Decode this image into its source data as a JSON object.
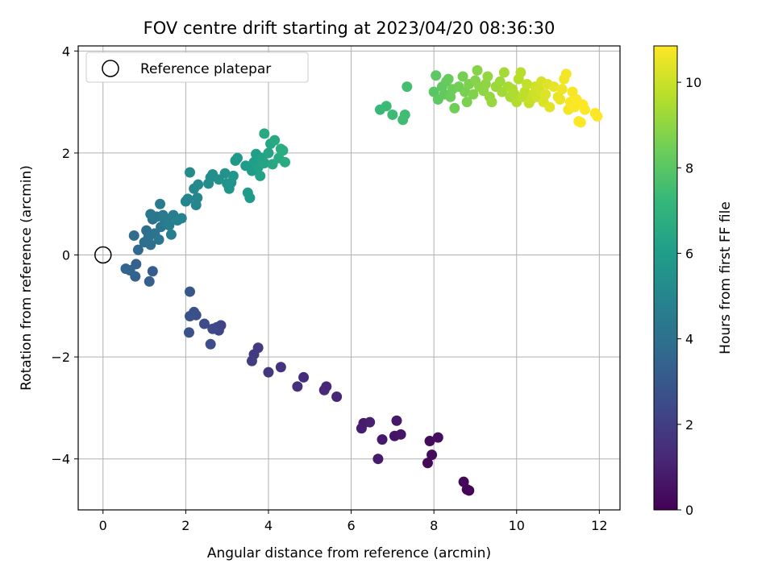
{
  "chart_data": {
    "type": "scatter",
    "title": "FOV centre drift starting at 2023/04/20 08:36:30",
    "xlabel": "Angular distance from reference (arcmin)",
    "ylabel": "Rotation from reference (arcmin)",
    "xlim": [
      -0.6,
      12.5
    ],
    "ylim": [
      -5.0,
      4.1
    ],
    "xticks": [
      0,
      2,
      4,
      6,
      8,
      10,
      12
    ],
    "yticks": [
      -4,
      -2,
      0,
      2,
      4
    ],
    "grid": true,
    "legend": {
      "entries": [
        "Reference platepar"
      ],
      "placement": "upper-left"
    },
    "colorbar": {
      "label": "Hours from first FF file",
      "range": [
        0,
        10.85
      ],
      "ticks": [
        0,
        2,
        4,
        6,
        8,
        10
      ],
      "colormap": "viridis"
    },
    "reference_point": {
      "x": 0,
      "y": 0
    },
    "colormap_stops": [
      "#440154",
      "#482878",
      "#3e4989",
      "#31688e",
      "#26828e",
      "#1f9e89",
      "#35b779",
      "#6ece58",
      "#b5de2b",
      "#fde725"
    ],
    "points": [
      [
        8.8,
        -4.6,
        0.05
      ],
      [
        8.85,
        -4.62,
        0.1
      ],
      [
        8.72,
        -4.45,
        0.15
      ],
      [
        7.85,
        -4.08,
        0.25
      ],
      [
        7.95,
        -3.92,
        0.3
      ],
      [
        7.9,
        -3.65,
        0.35
      ],
      [
        8.1,
        -3.58,
        0.4
      ],
      [
        7.05,
        -3.55,
        0.6
      ],
      [
        7.2,
        -3.52,
        0.65
      ],
      [
        7.1,
        -3.25,
        0.7
      ],
      [
        6.75,
        -3.62,
        0.75
      ],
      [
        6.65,
        -4.0,
        0.8
      ],
      [
        6.3,
        -3.3,
        0.85
      ],
      [
        6.25,
        -3.4,
        0.9
      ],
      [
        6.45,
        -3.28,
        0.95
      ],
      [
        5.65,
        -2.78,
        1.1
      ],
      [
        5.4,
        -2.58,
        1.2
      ],
      [
        5.35,
        -2.65,
        1.25
      ],
      [
        4.85,
        -2.4,
        1.4
      ],
      [
        4.7,
        -2.58,
        1.45
      ],
      [
        4.3,
        -2.2,
        1.6
      ],
      [
        4.0,
        -2.3,
        1.7
      ],
      [
        3.75,
        -1.82,
        1.85
      ],
      [
        3.65,
        -1.95,
        1.9
      ],
      [
        3.6,
        -2.08,
        1.95
      ],
      [
        2.85,
        -1.38,
        2.2
      ],
      [
        2.8,
        -1.48,
        2.3
      ],
      [
        2.75,
        -1.42,
        2.35
      ],
      [
        2.65,
        -1.45,
        2.4
      ],
      [
        2.45,
        -1.35,
        2.5
      ],
      [
        2.6,
        -1.75,
        2.55
      ],
      [
        2.2,
        -1.12,
        2.65
      ],
      [
        2.25,
        -1.18,
        2.7
      ],
      [
        2.1,
        -1.2,
        2.75
      ],
      [
        2.08,
        -1.52,
        2.8
      ],
      [
        2.1,
        -0.72,
        2.9
      ],
      [
        1.2,
        -0.32,
        3.2
      ],
      [
        1.12,
        -0.52,
        3.25
      ],
      [
        0.8,
        -0.18,
        3.35
      ],
      [
        0.78,
        -0.42,
        3.4
      ],
      [
        0.65,
        -0.3,
        3.5
      ],
      [
        0.55,
        -0.27,
        3.55
      ],
      [
        0.85,
        0.1,
        3.7
      ],
      [
        0.75,
        0.38,
        3.8
      ],
      [
        1.0,
        0.25,
        3.9
      ],
      [
        1.05,
        0.48,
        3.95
      ],
      [
        1.15,
        0.2,
        4.0
      ],
      [
        1.1,
        0.35,
        4.05
      ],
      [
        1.2,
        0.7,
        4.1
      ],
      [
        1.25,
        0.42,
        4.15
      ],
      [
        1.35,
        0.3,
        4.2
      ],
      [
        1.4,
        0.55,
        4.25
      ],
      [
        1.15,
        0.8,
        4.3
      ],
      [
        1.3,
        0.75,
        4.35
      ],
      [
        1.45,
        0.78,
        4.4
      ],
      [
        1.5,
        0.65,
        4.45
      ],
      [
        1.38,
        1.0,
        4.5
      ],
      [
        1.55,
        0.7,
        4.55
      ],
      [
        1.6,
        0.58,
        4.6
      ],
      [
        1.65,
        0.4,
        4.65
      ],
      [
        1.7,
        0.78,
        4.7
      ],
      [
        1.8,
        0.68,
        4.75
      ],
      [
        1.9,
        0.72,
        4.8
      ],
      [
        2.0,
        1.05,
        4.9
      ],
      [
        2.05,
        1.1,
        4.95
      ],
      [
        2.25,
        0.98,
        5.0
      ],
      [
        2.28,
        1.12,
        5.05
      ],
      [
        2.2,
        1.3,
        5.1
      ],
      [
        2.3,
        1.38,
        5.15
      ],
      [
        2.1,
        1.62,
        5.2
      ],
      [
        2.55,
        1.4,
        5.3
      ],
      [
        2.6,
        1.52,
        5.35
      ],
      [
        2.65,
        1.58,
        5.4
      ],
      [
        2.8,
        1.48,
        5.45
      ],
      [
        2.95,
        1.6,
        5.5
      ],
      [
        3.0,
        1.4,
        5.55
      ],
      [
        3.05,
        1.3,
        5.6
      ],
      [
        3.1,
        1.42,
        5.65
      ],
      [
        3.15,
        1.55,
        5.7
      ],
      [
        3.2,
        1.85,
        5.75
      ],
      [
        3.25,
        1.9,
        5.8
      ],
      [
        3.5,
        1.22,
        5.85
      ],
      [
        3.55,
        1.12,
        5.9
      ],
      [
        3.45,
        1.75,
        5.95
      ],
      [
        3.6,
        1.65,
        6.0
      ],
      [
        3.65,
        1.82,
        6.05
      ],
      [
        3.7,
        1.98,
        6.1
      ],
      [
        3.75,
        1.72,
        6.15
      ],
      [
        3.8,
        1.55,
        6.2
      ],
      [
        3.85,
        1.9,
        6.25
      ],
      [
        3.9,
        1.8,
        6.3
      ],
      [
        4.0,
        2.0,
        6.35
      ],
      [
        4.05,
        2.18,
        6.4
      ],
      [
        4.1,
        1.78,
        6.45
      ],
      [
        3.9,
        2.38,
        6.5
      ],
      [
        4.15,
        2.25,
        6.55
      ],
      [
        4.25,
        1.9,
        6.6
      ],
      [
        4.35,
        2.05,
        6.65
      ],
      [
        4.4,
        1.82,
        6.7
      ],
      [
        4.3,
        2.08,
        6.75
      ],
      [
        6.7,
        2.85,
        7.3
      ],
      [
        6.85,
        2.92,
        7.35
      ],
      [
        7.0,
        2.75,
        7.4
      ],
      [
        7.25,
        2.65,
        7.45
      ],
      [
        7.3,
        2.75,
        7.5
      ],
      [
        7.35,
        3.3,
        7.6
      ],
      [
        8.0,
        3.2,
        8.0
      ],
      [
        8.05,
        3.52,
        8.05
      ],
      [
        8.1,
        3.05,
        8.1
      ],
      [
        8.2,
        3.3,
        8.15
      ],
      [
        8.25,
        3.15,
        8.2
      ],
      [
        8.3,
        3.4,
        8.25
      ],
      [
        8.35,
        3.45,
        8.3
      ],
      [
        8.4,
        3.1,
        8.35
      ],
      [
        8.45,
        3.25,
        8.4
      ],
      [
        8.5,
        2.88,
        8.45
      ],
      [
        8.6,
        3.3,
        8.5
      ],
      [
        8.7,
        3.5,
        8.55
      ],
      [
        8.75,
        3.2,
        8.6
      ],
      [
        8.8,
        3.0,
        8.65
      ],
      [
        8.85,
        3.35,
        8.7
      ],
      [
        8.95,
        3.15,
        8.75
      ],
      [
        9.0,
        3.42,
        8.8
      ],
      [
        9.05,
        3.62,
        8.85
      ],
      [
        9.1,
        3.3,
        8.9
      ],
      [
        9.2,
        3.22,
        8.95
      ],
      [
        9.25,
        3.35,
        9.0
      ],
      [
        9.3,
        3.5,
        9.05
      ],
      [
        9.35,
        3.1,
        9.1
      ],
      [
        9.4,
        3.0,
        9.15
      ],
      [
        9.5,
        3.3,
        9.2
      ],
      [
        9.6,
        3.4,
        9.25
      ],
      [
        9.65,
        3.2,
        9.3
      ],
      [
        9.7,
        3.58,
        9.35
      ],
      [
        9.8,
        3.3,
        9.4
      ],
      [
        9.85,
        3.1,
        9.45
      ],
      [
        9.9,
        3.25,
        9.5
      ],
      [
        9.95,
        3.15,
        9.55
      ],
      [
        10.0,
        3.0,
        9.6
      ],
      [
        10.05,
        3.45,
        9.65
      ],
      [
        10.1,
        3.58,
        9.7
      ],
      [
        10.15,
        3.1,
        9.75
      ],
      [
        10.2,
        3.2,
        9.8
      ],
      [
        10.25,
        3.35,
        9.85
      ],
      [
        10.3,
        2.98,
        9.9
      ],
      [
        10.35,
        3.05,
        9.95
      ],
      [
        10.4,
        3.15,
        10.0
      ],
      [
        10.45,
        3.3,
        10.05
      ],
      [
        10.5,
        3.1,
        10.1
      ],
      [
        10.55,
        3.25,
        10.15
      ],
      [
        10.6,
        3.4,
        10.2
      ],
      [
        10.65,
        3.0,
        10.25
      ],
      [
        10.7,
        3.15,
        10.3
      ],
      [
        10.75,
        3.35,
        10.35
      ],
      [
        10.8,
        2.9,
        10.4
      ],
      [
        10.9,
        3.3,
        10.45
      ],
      [
        11.0,
        3.1,
        10.5
      ],
      [
        11.05,
        3.05,
        10.55
      ],
      [
        11.1,
        3.25,
        10.6
      ],
      [
        11.15,
        3.45,
        10.65
      ],
      [
        11.2,
        3.55,
        10.7
      ],
      [
        11.25,
        2.85,
        10.7
      ],
      [
        11.3,
        3.0,
        10.75
      ],
      [
        11.35,
        3.2,
        10.75
      ],
      [
        11.4,
        2.9,
        10.78
      ],
      [
        11.45,
        3.05,
        10.8
      ],
      [
        11.5,
        2.62,
        10.82
      ],
      [
        11.55,
        2.6,
        10.83
      ],
      [
        11.6,
        2.95,
        10.84
      ],
      [
        11.65,
        2.85,
        10.85
      ],
      [
        11.9,
        2.78,
        10.85
      ],
      [
        11.95,
        2.72,
        10.85
      ]
    ]
  }
}
